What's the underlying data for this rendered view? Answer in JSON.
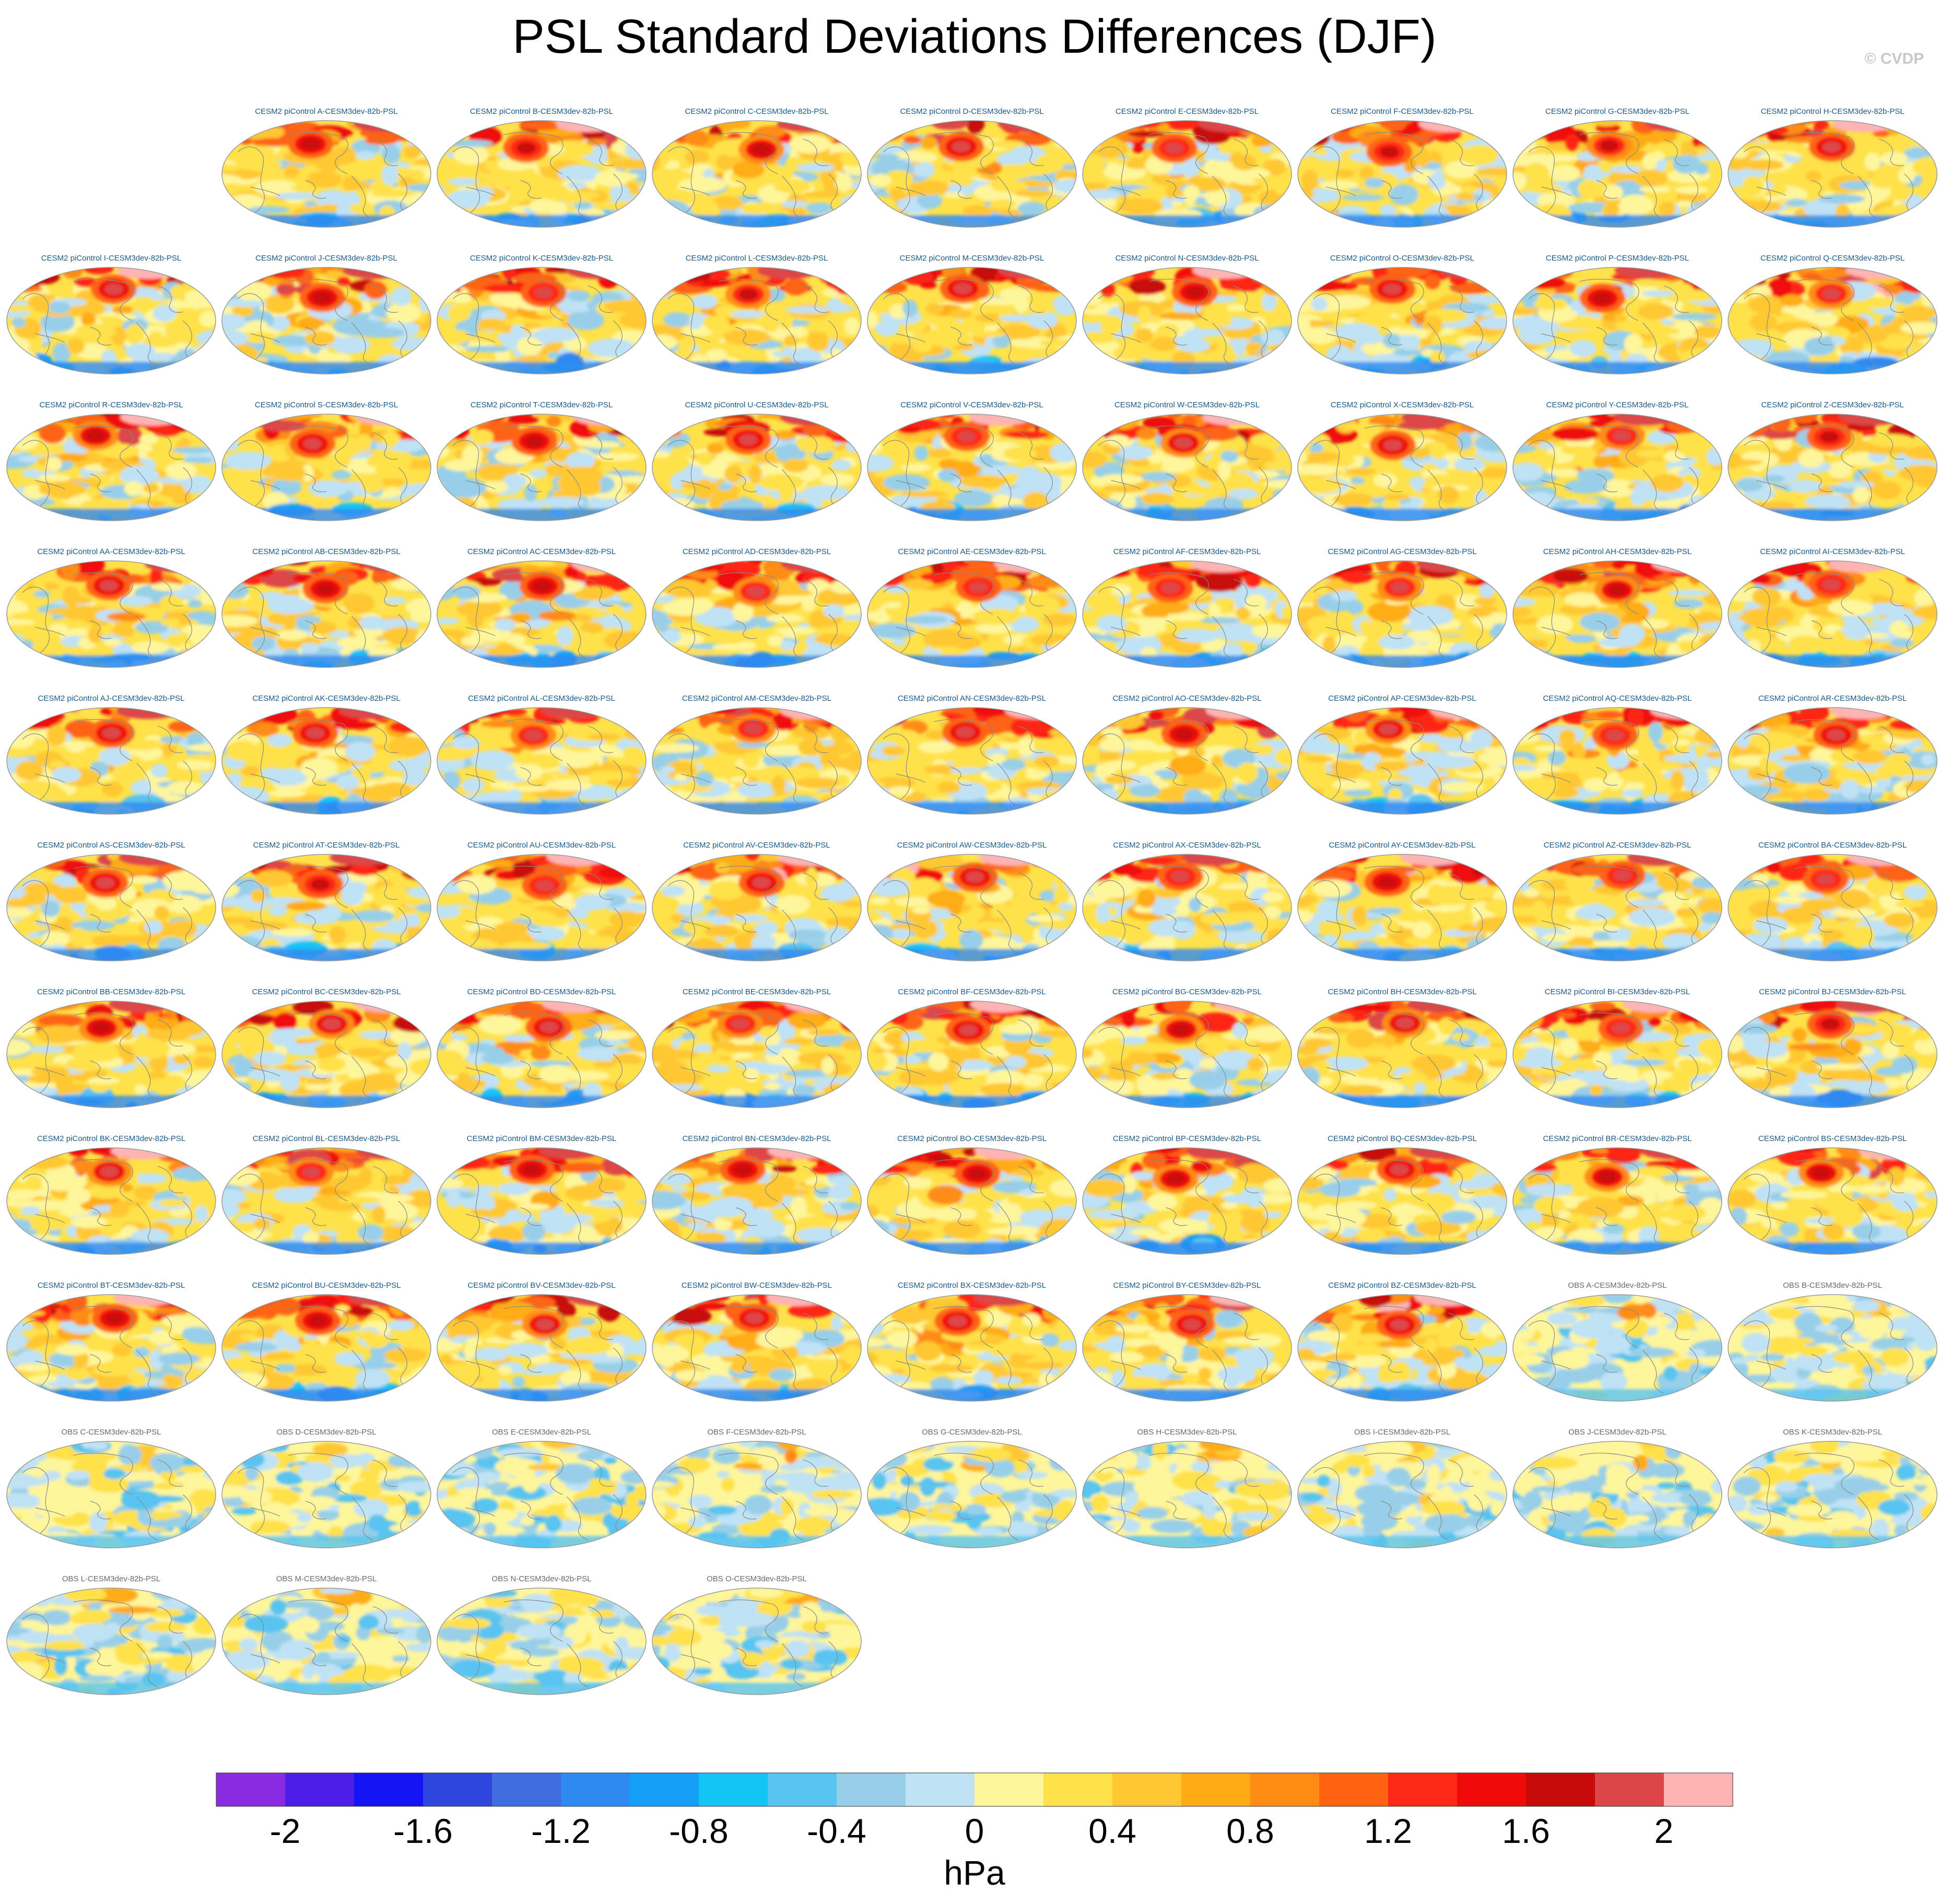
{
  "title": "PSL Standard Deviations Differences (DJF)",
  "watermark": "© CVDP",
  "chart_data": {
    "type": "heatmap",
    "title": "PSL Standard Deviations Differences (DJF)",
    "projection": "global map panels",
    "units": "hPa",
    "colorbar": {
      "tick_labels": [
        "-2",
        "-1.6",
        "-1.2",
        "-0.8",
        "-0.4",
        "0",
        "0.4",
        "0.8",
        "1.2",
        "1.6",
        "2"
      ],
      "tick_values": [
        -2,
        -1.6,
        -1.2,
        -0.8,
        -0.4,
        0,
        0.4,
        0.8,
        1.2,
        1.6,
        2
      ],
      "range": [
        -2.2,
        2.2
      ],
      "colors": [
        "#8a2be2",
        "#4b1fe8",
        "#1414f5",
        "#2f46dc",
        "#3f6de0",
        "#2f8af0",
        "#14a0f5",
        "#14c4f5",
        "#58c4ef",
        "#98cfe8",
        "#bfe2f5",
        "#fff59a",
        "#ffe14a",
        "#ffc832",
        "#ffac14",
        "#ff8c14",
        "#ff6414",
        "#ff2814",
        "#f00a0a",
        "#c80a0a",
        "#dc4646",
        "#ffb4b4"
      ]
    },
    "panels": [
      "CESM2 piControl A-CESM3dev-82b-PSL",
      "CESM2 piControl B-CESM3dev-82b-PSL",
      "CESM2 piControl C-CESM3dev-82b-PSL",
      "CESM2 piControl D-CESM3dev-82b-PSL",
      "CESM2 piControl E-CESM3dev-82b-PSL",
      "CESM2 piControl F-CESM3dev-82b-PSL",
      "CESM2 piControl G-CESM3dev-82b-PSL",
      "CESM2 piControl H-CESM3dev-82b-PSL",
      "CESM2 piControl I-CESM3dev-82b-PSL",
      "CESM2 piControl J-CESM3dev-82b-PSL",
      "CESM2 piControl K-CESM3dev-82b-PSL",
      "CESM2 piControl L-CESM3dev-82b-PSL",
      "CESM2 piControl M-CESM3dev-82b-PSL",
      "CESM2 piControl N-CESM3dev-82b-PSL",
      "CESM2 piControl O-CESM3dev-82b-PSL",
      "CESM2 piControl P-CESM3dev-82b-PSL",
      "CESM2 piControl Q-CESM3dev-82b-PSL",
      "CESM2 piControl R-CESM3dev-82b-PSL",
      "CESM2 piControl S-CESM3dev-82b-PSL",
      "CESM2 piControl T-CESM3dev-82b-PSL",
      "CESM2 piControl U-CESM3dev-82b-PSL",
      "CESM2 piControl V-CESM3dev-82b-PSL",
      "CESM2 piControl W-CESM3dev-82b-PSL",
      "CESM2 piControl X-CESM3dev-82b-PSL",
      "CESM2 piControl Y-CESM3dev-82b-PSL",
      "CESM2 piControl Z-CESM3dev-82b-PSL",
      "CESM2 piControl AA-CESM3dev-82b-PSL",
      "CESM2 piControl AB-CESM3dev-82b-PSL",
      "CESM2 piControl AC-CESM3dev-82b-PSL",
      "CESM2 piControl AD-CESM3dev-82b-PSL",
      "CESM2 piControl AE-CESM3dev-82b-PSL",
      "CESM2 piControl AF-CESM3dev-82b-PSL",
      "CESM2 piControl AG-CESM3dev-82b-PSL",
      "CESM2 piControl AH-CESM3dev-82b-PSL",
      "CESM2 piControl AI-CESM3dev-82b-PSL",
      "CESM2 piControl AJ-CESM3dev-82b-PSL",
      "CESM2 piControl AK-CESM3dev-82b-PSL",
      "CESM2 piControl AL-CESM3dev-82b-PSL",
      "CESM2 piControl AM-CESM3dev-82b-PSL",
      "CESM2 piControl AN-CESM3dev-82b-PSL",
      "CESM2 piControl AO-CESM3dev-82b-PSL",
      "CESM2 piControl AP-CESM3dev-82b-PSL",
      "CESM2 piControl AQ-CESM3dev-82b-PSL",
      "CESM2 piControl AR-CESM3dev-82b-PSL",
      "CESM2 piControl AS-CESM3dev-82b-PSL",
      "CESM2 piControl AT-CESM3dev-82b-PSL",
      "CESM2 piControl AU-CESM3dev-82b-PSL",
      "CESM2 piControl AV-CESM3dev-82b-PSL",
      "CESM2 piControl AW-CESM3dev-82b-PSL",
      "CESM2 piControl AX-CESM3dev-82b-PSL",
      "CESM2 piControl AY-CESM3dev-82b-PSL",
      "CESM2 piControl AZ-CESM3dev-82b-PSL",
      "CESM2 piControl BA-CESM3dev-82b-PSL",
      "CESM2 piControl BB-CESM3dev-82b-PSL",
      "CESM2 piControl BC-CESM3dev-82b-PSL",
      "CESM2 piControl BD-CESM3dev-82b-PSL",
      "CESM2 piControl BE-CESM3dev-82b-PSL",
      "CESM2 piControl BF-CESM3dev-82b-PSL",
      "CESM2 piControl BG-CESM3dev-82b-PSL",
      "CESM2 piControl BH-CESM3dev-82b-PSL",
      "CESM2 piControl BI-CESM3dev-82b-PSL",
      "CESM2 piControl BJ-CESM3dev-82b-PSL",
      "CESM2 piControl BK-CESM3dev-82b-PSL",
      "CESM2 piControl BL-CESM3dev-82b-PSL",
      "CESM2 piControl BM-CESM3dev-82b-PSL",
      "CESM2 piControl BN-CESM3dev-82b-PSL",
      "CESM2 piControl BO-CESM3dev-82b-PSL",
      "CESM2 piControl BP-CESM3dev-82b-PSL",
      "CESM2 piControl BQ-CESM3dev-82b-PSL",
      "CESM2 piControl BR-CESM3dev-82b-PSL",
      "CESM2 piControl BS-CESM3dev-82b-PSL",
      "CESM2 piControl BT-CESM3dev-82b-PSL",
      "CESM2 piControl BU-CESM3dev-82b-PSL",
      "CESM2 piControl BV-CESM3dev-82b-PSL",
      "CESM2 piControl BW-CESM3dev-82b-PSL",
      "CESM2 piControl BX-CESM3dev-82b-PSL",
      "CESM2 piControl BY-CESM3dev-82b-PSL",
      "CESM2 piControl BZ-CESM3dev-82b-PSL",
      "OBS A-CESM3dev-82b-PSL",
      "OBS B-CESM3dev-82b-PSL",
      "OBS C-CESM3dev-82b-PSL",
      "OBS D-CESM3dev-82b-PSL",
      "OBS E-CESM3dev-82b-PSL",
      "OBS F-CESM3dev-82b-PSL",
      "OBS G-CESM3dev-82b-PSL",
      "OBS H-CESM3dev-82b-PSL",
      "OBS I-CESM3dev-82b-PSL",
      "OBS J-CESM3dev-82b-PSL",
      "OBS K-CESM3dev-82b-PSL",
      "OBS L-CESM3dev-82b-PSL",
      "OBS M-CESM3dev-82b-PSL",
      "OBS N-CESM3dev-82b-PSL",
      "OBS O-CESM3dev-82b-PSL"
    ]
  }
}
